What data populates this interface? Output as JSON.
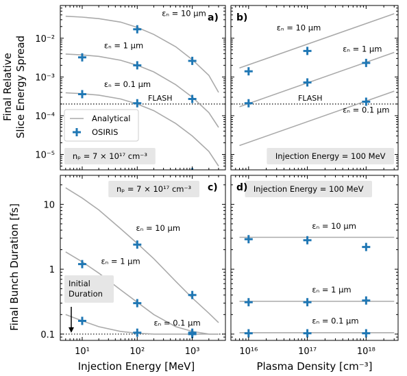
{
  "figure": {
    "common_xlabels": {
      "left": "Injection Energy [MeV]",
      "right": "Plasma Density [cm⁻³]"
    },
    "common_ylabels": {
      "top": [
        "Final Relative",
        "Slice Energy Spread"
      ],
      "bottom": "Final Bunch Duration [fs]"
    }
  },
  "chart_data": [
    {
      "id": "a",
      "panel_label": "a)",
      "type": "line",
      "title": "",
      "xlabel": "Injection Energy [MeV]",
      "ylabel": "Final Relative Slice Energy Spread",
      "x_scale": "log",
      "y_scale": "log",
      "xlim": [
        4,
        4000
      ],
      "ylim": [
        4e-06,
        0.07
      ],
      "x_tick_labels_shown": false,
      "y_ticks": [
        1e-05,
        0.0001,
        0.001,
        0.01
      ],
      "y_tick_labels": [
        "10⁻⁵",
        "10⁻⁴",
        "10⁻³",
        "10⁻²"
      ],
      "grid": false,
      "legend": {
        "position": "lower-left",
        "entries": [
          {
            "label": "Analytical",
            "marker": "line",
            "color": "#aaaaaa"
          },
          {
            "label": "OSIRIS",
            "marker": "plus",
            "color": "#1f77b4"
          }
        ]
      },
      "reference_line": {
        "label": "FLASH",
        "y": 0.0002,
        "style": "dotted"
      },
      "annotation_box": {
        "text": "n_p = 7 × 10¹⁷ cm⁻³",
        "position": "bottom-left"
      },
      "series": [
        {
          "name": "ε_n = 10 μm",
          "kind": "Analytical",
          "x": [
            5,
            10,
            20,
            50,
            100,
            200,
            500,
            1000,
            2000,
            3000
          ],
          "y": [
            0.037,
            0.035,
            0.032,
            0.026,
            0.019,
            0.0125,
            0.006,
            0.0028,
            0.0011,
            0.0004
          ]
        },
        {
          "name": "ε_n = 1 μm",
          "kind": "Analytical",
          "x": [
            5,
            10,
            20,
            50,
            100,
            200,
            500,
            1000,
            2000,
            3000
          ],
          "y": [
            0.0039,
            0.0037,
            0.0034,
            0.0027,
            0.002,
            0.00135,
            0.00063,
            0.0003,
            0.00012,
            5e-05
          ]
        },
        {
          "name": "ε_n = 0.1 μm",
          "kind": "Analytical",
          "x": [
            5,
            10,
            20,
            50,
            100,
            200,
            500,
            1000,
            2000,
            3000
          ],
          "y": [
            0.00039,
            0.00037,
            0.00034,
            0.00027,
            0.0002,
            0.000135,
            6.3e-05,
            3e-05,
            1.2e-05,
            5e-06
          ]
        },
        {
          "name": "OSIRIS",
          "kind": "OSIRIS",
          "x": [
            10,
            100,
            1000,
            10,
            100,
            1000,
            10,
            100,
            1000
          ],
          "y": [
            0.0032,
            0.002,
            0.0026,
            0.00036,
            0.00021,
            0.00027,
            null,
            0.017,
            3.5e-06
          ],
          "points": [
            [
              10,
              0.0032
            ],
            [
              100,
              0.002
            ],
            [
              1000,
              0.0026
            ],
            [
              10,
              0.00036
            ],
            [
              100,
              0.00021
            ],
            [
              1000,
              0.00027
            ],
            [
              100,
              0.017
            ],
            [
              1000,
              3.5e-06
            ]
          ]
        }
      ],
      "labels": [
        {
          "text": "ε_n = 10 μm",
          "x": 280,
          "y": 0.037
        },
        {
          "text": "ε_n = 1 μm",
          "x": 25,
          "y": 0.0055
        },
        {
          "text": "ε_n = 0.1 μm",
          "x": 25,
          "y": 0.00055
        }
      ]
    },
    {
      "id": "b",
      "panel_label": "b)",
      "type": "line",
      "title": "",
      "xlabel": "Plasma Density [cm⁻³]",
      "x_scale": "log",
      "y_scale": "log",
      "xlim": [
        5000000000000000.0,
        3.5e+18
      ],
      "ylim": [
        4e-06,
        0.07
      ],
      "x_tick_labels_shown": false,
      "y_tick_labels_shown": false,
      "grid": false,
      "reference_line": {
        "label": "FLASH",
        "y": 0.0002,
        "style": "dotted"
      },
      "annotation_box": {
        "text": "Injection Energy = 100 MeV",
        "position": "bottom-right"
      },
      "series": [
        {
          "name": "ε_n = 10 μm",
          "kind": "Analytical",
          "x": [
            7000000000000000.0,
            3e+18
          ],
          "y": [
            0.0017,
            0.043
          ]
        },
        {
          "name": "ε_n = 1 μm",
          "kind": "Analytical",
          "x": [
            7000000000000000.0,
            3e+18
          ],
          "y": [
            0.00017,
            0.0043
          ]
        },
        {
          "name": "ε_n = 0.1 μm",
          "kind": "Analytical",
          "x": [
            7000000000000000.0,
            3e+18
          ],
          "y": [
            1.7e-05,
            0.00043
          ]
        },
        {
          "name": "OSIRIS",
          "kind": "OSIRIS",
          "points": [
            [
              1e+16,
              0.0014
            ],
            [
              1e+17,
              0.0047
            ],
            [
              1e+18,
              0.0023
            ],
            [
              1e+16,
              0.00021
            ],
            [
              1e+17,
              0.00072
            ],
            [
              1e+18,
              0.00023
            ]
          ]
        }
      ],
      "labels": [
        {
          "text": "ε_n = 10 μm",
          "x": 3e+16,
          "y": 0.016
        },
        {
          "text": "ε_n = 1 μm",
          "x": 4e+17,
          "y": 0.0045
        },
        {
          "text": "ε_n = 0.1 μm",
          "x": 4e+17,
          "y": 0.00012
        }
      ]
    },
    {
      "id": "c",
      "panel_label": "c)",
      "type": "line",
      "title": "",
      "xlabel": "Injection Energy [MeV]",
      "ylabel": "Final Bunch Duration [fs]",
      "x_scale": "log",
      "y_scale": "log",
      "xlim": [
        4,
        4000
      ],
      "ylim": [
        0.08,
        28
      ],
      "x_ticks": [
        10,
        100,
        1000
      ],
      "x_tick_labels": [
        "10¹",
        "10²",
        "10³"
      ],
      "y_ticks": [
        0.1,
        1,
        10
      ],
      "y_tick_labels": [
        "0.1",
        "1",
        "10"
      ],
      "grid": false,
      "reference_line": {
        "label": "",
        "y": 0.1,
        "style": "dotted"
      },
      "annotation_box": {
        "text": "n_p = 7 × 10¹⁷ cm⁻³",
        "position": "top-right"
      },
      "arrow_annotation": {
        "lines": [
          "Initial",
          "Duration"
        ],
        "arrow_to_y": 0.1
      },
      "series": [
        {
          "name": "ε_n = 10 μm",
          "kind": "Analytical",
          "x": [
            5,
            10,
            20,
            50,
            100,
            200,
            500,
            1000,
            2000,
            3000
          ],
          "y": [
            18,
            12.5,
            8.2,
            4.2,
            2.5,
            1.45,
            0.65,
            0.36,
            0.21,
            0.15
          ]
        },
        {
          "name": "ε_n = 1 μm",
          "kind": "Analytical",
          "x": [
            5,
            10,
            20,
            50,
            100,
            200,
            500,
            1000,
            2000,
            3000
          ],
          "y": [
            1.85,
            1.3,
            0.87,
            0.48,
            0.31,
            0.2,
            0.13,
            0.11,
            0.1,
            0.1
          ]
        },
        {
          "name": "ε_n = 0.1 μm",
          "kind": "Analytical",
          "x": [
            5,
            10,
            20,
            50,
            100,
            200,
            500,
            1000,
            2000,
            3000
          ],
          "y": [
            0.2,
            0.16,
            0.13,
            0.11,
            0.103,
            0.1,
            0.1,
            0.1,
            0.1,
            0.1
          ]
        },
        {
          "name": "OSIRIS",
          "kind": "OSIRIS",
          "points": [
            [
              10,
              1.2
            ],
            [
              100,
              2.4
            ],
            [
              1000,
              0.4
            ],
            [
              10,
              0.16
            ],
            [
              100,
              0.3
            ],
            [
              1000,
              0.105
            ],
            [
              100,
              0.105
            ],
            [
              1000,
              0.1
            ]
          ]
        }
      ],
      "labels": [
        {
          "text": "ε_n = 10 μm",
          "x": 95,
          "y": 3.9
        },
        {
          "text": "ε_n = 1 μm",
          "x": 22,
          "y": 1.2
        },
        {
          "text": "ε_n = 0.1 μm",
          "x": 200,
          "y": 0.135
        }
      ]
    },
    {
      "id": "d",
      "panel_label": "d)",
      "type": "line",
      "title": "",
      "xlabel": "Plasma Density [cm⁻³]",
      "x_scale": "log",
      "y_scale": "log",
      "xlim": [
        5000000000000000.0,
        3.5e+18
      ],
      "ylim": [
        0.08,
        28
      ],
      "x_ticks": [
        1e+16,
        1e+17,
        1e+18
      ],
      "x_tick_labels": [
        "10¹⁶",
        "10¹⁷",
        "10¹⁸"
      ],
      "y_tick_labels_shown": false,
      "grid": false,
      "annotation_box": {
        "text": "Injection Energy = 100 MeV",
        "position": "top-right"
      },
      "series": [
        {
          "name": "ε_n = 10 μm",
          "kind": "Analytical",
          "x": [
            7000000000000000.0,
            3e+18
          ],
          "y": [
            3.1,
            3.1
          ]
        },
        {
          "name": "ε_n = 1 μm",
          "kind": "Analytical",
          "x": [
            7000000000000000.0,
            3e+18
          ],
          "y": [
            0.32,
            0.32
          ]
        },
        {
          "name": "ε_n = 0.1 μm",
          "kind": "Analytical",
          "x": [
            7000000000000000.0,
            3e+18
          ],
          "y": [
            0.105,
            0.105
          ]
        },
        {
          "name": "OSIRIS",
          "kind": "OSIRIS",
          "points": [
            [
              1e+16,
              2.9
            ],
            [
              1e+17,
              2.8
            ],
            [
              1e+18,
              2.2
            ],
            [
              1e+16,
              0.31
            ],
            [
              1e+17,
              0.31
            ],
            [
              1e+18,
              0.33
            ],
            [
              1e+16,
              0.103
            ],
            [
              1e+17,
              0.103
            ],
            [
              1e+18,
              0.103
            ]
          ]
        }
      ],
      "labels": [
        {
          "text": "ε_n = 10 μm",
          "x": 1.2e+17,
          "y": 4.2
        },
        {
          "text": "ε_n = 1 μm",
          "x": 1.2e+17,
          "y": 0.44
        },
        {
          "text": "ε_n = 0.1 μm",
          "x": 1.2e+17,
          "y": 0.145
        }
      ]
    }
  ],
  "colors": {
    "analytical": "#aaaaaa",
    "osiris": "#1f77b4",
    "box_fill": "#e6e6e6"
  }
}
